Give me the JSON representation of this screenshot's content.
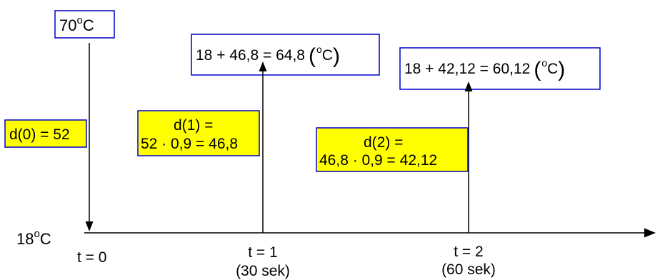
{
  "initial_temp": {
    "base": "70",
    "deg": "o",
    "unit": "C"
  },
  "ambient_temp": {
    "base": "18",
    "deg": "o",
    "unit": "C"
  },
  "d0_label": "d(0) = 52",
  "steps": [
    {
      "formula_lines": [
        "d(1) =",
        "52 · 0,9 = 46,8"
      ],
      "result": {
        "expr": "18 + 46,8 = 64,8",
        "deg": "o",
        "unit": "C"
      },
      "t_label": "t = 1",
      "time_label": "(30 sek)"
    },
    {
      "formula_lines": [
        "d(2) =",
        "46,8 · 0,9 = 42,12"
      ],
      "result": {
        "expr": "18 + 42,12 = 60,12",
        "deg": "o",
        "unit": "C"
      },
      "t_label": "t = 2",
      "time_label": "(60 sek)"
    }
  ],
  "t0_label": "t = 0",
  "colors": {
    "box_border": "#0000cc",
    "highlight_fill": "#ffff00",
    "line": "#000000"
  }
}
